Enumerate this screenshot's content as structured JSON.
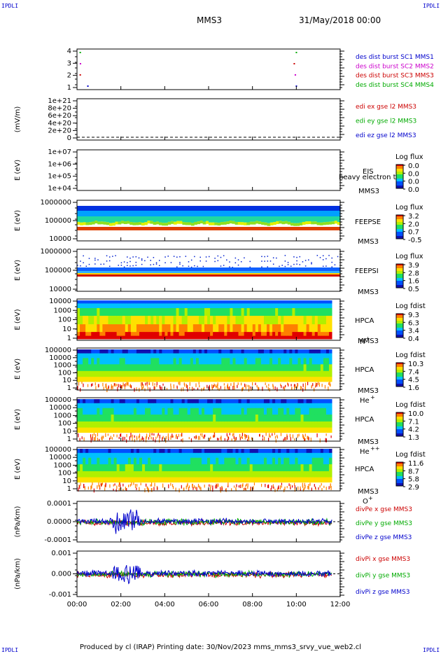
{
  "corner_labels": {
    "top_left": "IPDLI",
    "top_right": "IPDLI",
    "bottom_left": "IPDLI",
    "bottom_right": "IPDLI"
  },
  "header": {
    "spacecraft": "MMS3",
    "date": "31/May/2018 00:00"
  },
  "footer": "Produced by cl (IRAP)   Printing date: 30/Nov/2023   mms_mms3_srvy_vue_web2.cl",
  "colors": {
    "blue": "#0000cc",
    "magenta": "#cc00cc",
    "red": "#cc0000",
    "green": "#00aa00"
  },
  "chart_data": {
    "type": "heatmap",
    "x_axis": {
      "tick_labels": [
        "00:00",
        "02:00",
        "04:00",
        "06:00",
        "08:00",
        "10:00",
        "12:00"
      ]
    },
    "panels": [
      {
        "id": "burst",
        "kind": "markers",
        "yticks": [
          "4",
          "3",
          "2",
          "1"
        ],
        "legend": [
          {
            "text": "des dist burst SC1 MMS1",
            "color": "blue"
          },
          {
            "text": "des dist burst SC2 MMS2",
            "color": "magenta"
          },
          {
            "text": "des dist burst SC3 MMS3",
            "color": "red"
          },
          {
            "text": "des dist burst SC4 MMS4",
            "color": "green"
          }
        ]
      },
      {
        "id": "edi",
        "kind": "line",
        "ylabel": "(mV/m)",
        "yticks": [
          "1e+21",
          "8e+20",
          "6e+20",
          "4e+20",
          "2e+20",
          "0"
        ],
        "legend": [
          {
            "text": "edi ex gse l2 MMS3",
            "color": "red"
          },
          {
            "text": "edi ey gse l2 MMS3",
            "color": "green"
          },
          {
            "text": "edi ez gse l2 MMS3",
            "color": "blue"
          }
        ]
      },
      {
        "id": "eis",
        "kind": "empty-spectrogram",
        "ylabel": "E (eV)",
        "yticks": [
          "1e+07",
          "1e+06",
          "1e+05",
          "1e+04"
        ],
        "instrument": [
          "EIS",
          "MMS3"
        ],
        "overlay": "heavy electron to",
        "cbar_title": "Log flux",
        "cbar_ticks": [
          "0.0",
          "0.0",
          "0.0",
          "0.0"
        ]
      },
      {
        "id": "feepse",
        "kind": "spectrogram",
        "variant": "feeps",
        "ylabel": "E (eV)",
        "yticks": [
          "1000000",
          "100000",
          "10000"
        ],
        "instrument": [
          "FEEPSE",
          "MMS3"
        ],
        "cbar_title": "Log flux",
        "cbar_ticks": [
          "3.2",
          "2.0",
          "0.7",
          "-0.5"
        ]
      },
      {
        "id": "feepsi",
        "kind": "spectrogram",
        "variant": "feepsi",
        "ylabel": "E (eV)",
        "yticks": [
          "1000000",
          "100000",
          "10000"
        ],
        "instrument": [
          "FEEPSI",
          "MMS3"
        ],
        "cbar_title": "Log flux",
        "cbar_ticks": [
          "3.9",
          "2.8",
          "1.6",
          "0.5"
        ]
      },
      {
        "id": "hpca_h",
        "kind": "spectrogram",
        "variant": "hpca_h",
        "ylabel": "E (eV)",
        "yticks": [
          "10000",
          "1000",
          "100",
          "10",
          "1"
        ],
        "instrument": [
          "HPCA",
          "MMS3"
        ],
        "species": "H",
        "charge": "+",
        "cbar_title": "Log fdist",
        "cbar_ticks": [
          "9.3",
          "6.3",
          "3.4",
          "0.4"
        ]
      },
      {
        "id": "hpca_he1",
        "kind": "spectrogram",
        "variant": "hpca_he1",
        "ylabel": "E (eV)",
        "yticks": [
          "100000",
          "10000",
          "1000",
          "100",
          "10",
          "1"
        ],
        "instrument": [
          "HPCA",
          "MMS3"
        ],
        "species": "He",
        "charge": "+",
        "cbar_title": "Log fdist",
        "cbar_ticks": [
          "10.3",
          "7.4",
          "4.5",
          "1.6"
        ]
      },
      {
        "id": "hpca_he2",
        "kind": "spectrogram",
        "variant": "hpca_he2",
        "ylabel": "E (eV)",
        "yticks": [
          "100000",
          "10000",
          "1000",
          "100",
          "10",
          "1"
        ],
        "instrument": [
          "HPCA",
          "MMS3"
        ],
        "species": "He",
        "charge": "++",
        "cbar_title": "Log fdist",
        "cbar_ticks": [
          "10.0",
          "7.1",
          "4.2",
          "1.3"
        ]
      },
      {
        "id": "hpca_o",
        "kind": "spectrogram",
        "variant": "hpca_o",
        "ylabel": "E (eV)",
        "yticks": [
          "100000",
          "10000",
          "1000",
          "100",
          "10",
          "1"
        ],
        "instrument": [
          "HPCA",
          "MMS3"
        ],
        "species": "O",
        "charge": "+",
        "cbar_title": "Log fdist",
        "cbar_ticks": [
          "11.6",
          "8.7",
          "5.8",
          "2.9"
        ]
      },
      {
        "id": "divpe",
        "kind": "line",
        "ylabel": "(nPa/km)",
        "yticks": [
          "0.0001",
          "0.0000",
          "-0.0001"
        ],
        "legend": [
          {
            "text": "divPe x gse MMS3",
            "color": "red"
          },
          {
            "text": "divPe y gse MMS3",
            "color": "green"
          },
          {
            "text": "divPe z gse MMS3",
            "color": "blue"
          }
        ]
      },
      {
        "id": "divpi",
        "kind": "line",
        "ylabel": "(nPa/km)",
        "yticks": [
          "0.001",
          "0.000",
          "-0.001"
        ],
        "legend": [
          {
            "text": "divPi x gse MMS3",
            "color": "red"
          },
          {
            "text": "divPi y gse MMS3",
            "color": "green"
          },
          {
            "text": "divPi z gse MMS3",
            "color": "blue"
          }
        ]
      }
    ]
  }
}
